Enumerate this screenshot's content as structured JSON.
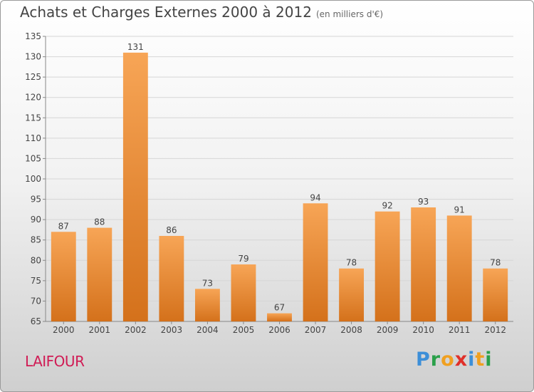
{
  "header": {
    "title": "Achats et Charges Externes 2000 à 2012",
    "unit": "(en milliers d'€)"
  },
  "footer": {
    "commune": "LAIFOUR",
    "logo_letters": [
      "P",
      "r",
      "o",
      "x",
      "i",
      "t",
      "i"
    ]
  },
  "colors": {
    "commune": "#d01c55",
    "bar_top": "#f7a556",
    "bar_bottom": "#d4711b",
    "logo": [
      "#3d8fd8",
      "#2aa04a",
      "#f0a020",
      "#e0302a",
      "#3d8fd8",
      "#f0a020",
      "#2aa04a"
    ]
  },
  "chart_data": {
    "type": "bar",
    "categories": [
      "2000",
      "2001",
      "2002",
      "2003",
      "2004",
      "2005",
      "2006",
      "2007",
      "2008",
      "2009",
      "2010",
      "2011",
      "2012"
    ],
    "values": [
      87,
      88,
      131,
      86,
      73,
      79,
      67,
      94,
      78,
      92,
      93,
      91,
      78
    ],
    "ylim": [
      65,
      135
    ],
    "yticks": [
      65,
      70,
      75,
      80,
      85,
      90,
      95,
      100,
      105,
      110,
      115,
      120,
      125,
      130,
      135
    ],
    "grid": true,
    "legend": "none"
  }
}
